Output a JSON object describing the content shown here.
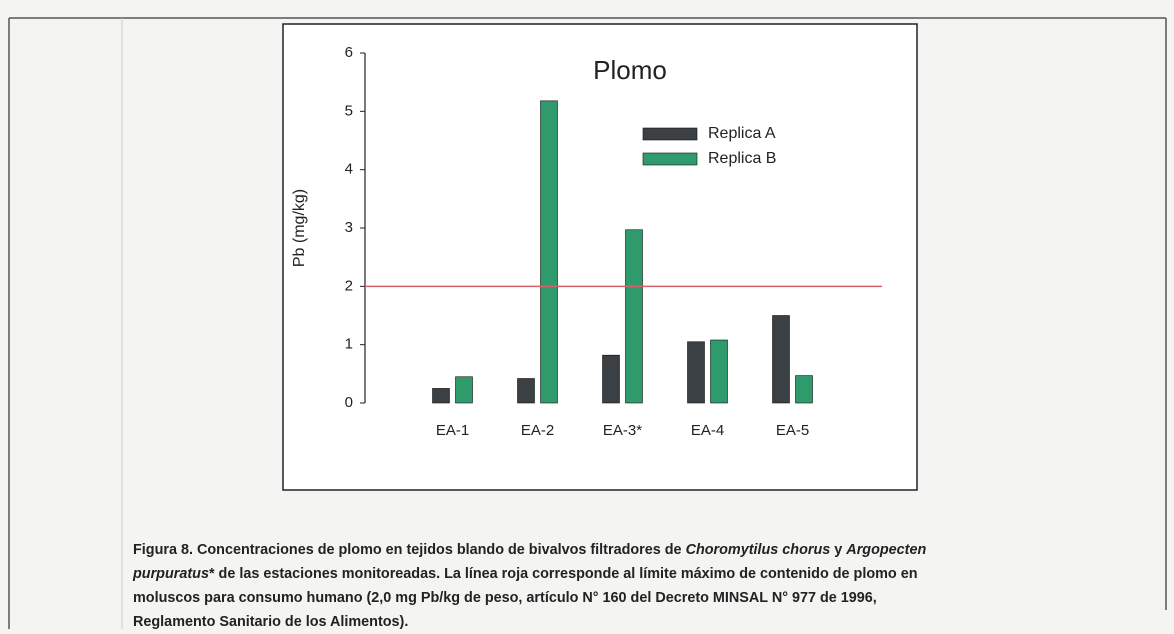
{
  "chart_data": {
    "type": "bar",
    "title": "Plomo",
    "y_label": "Pb (mg/kg)",
    "categories": [
      "EA-1",
      "EA-2",
      "EA-3*",
      "EA-4",
      "EA-5"
    ],
    "series": [
      {
        "name": "Replica A",
        "color": "#3b4045",
        "values": [
          0.25,
          0.42,
          0.82,
          1.05,
          1.5
        ]
      },
      {
        "name": "Replica B",
        "color": "#2f9b6d",
        "values": [
          0.45,
          5.18,
          2.97,
          1.08,
          0.47
        ]
      }
    ],
    "ylim": [
      0,
      6
    ],
    "yticks": [
      0,
      1,
      2,
      3,
      4,
      5,
      6
    ],
    "reference_line": {
      "value": 2,
      "color": "#d9606a"
    }
  },
  "caption": [
    {
      "text": "Figura 8. Concentraciones de plomo en tejidos blando de bivalvos filtradores de ",
      "italic": false
    },
    {
      "text": "Choromytilus chorus",
      "italic": true
    },
    {
      "text": " y ",
      "italic": false
    },
    {
      "text": "Argopecten purpuratus",
      "italic": true
    },
    {
      "text": "* de las estaciones monitoreadas. La línea roja corresponde al límite máximo de contenido de plomo en moluscos para consumo humano (2,0 mg Pb/kg de peso, artículo N° 160 del Decreto MINSAL N° 977 de 1996, Reglamento Sanitario de los Alimentos).",
      "italic": false
    }
  ]
}
